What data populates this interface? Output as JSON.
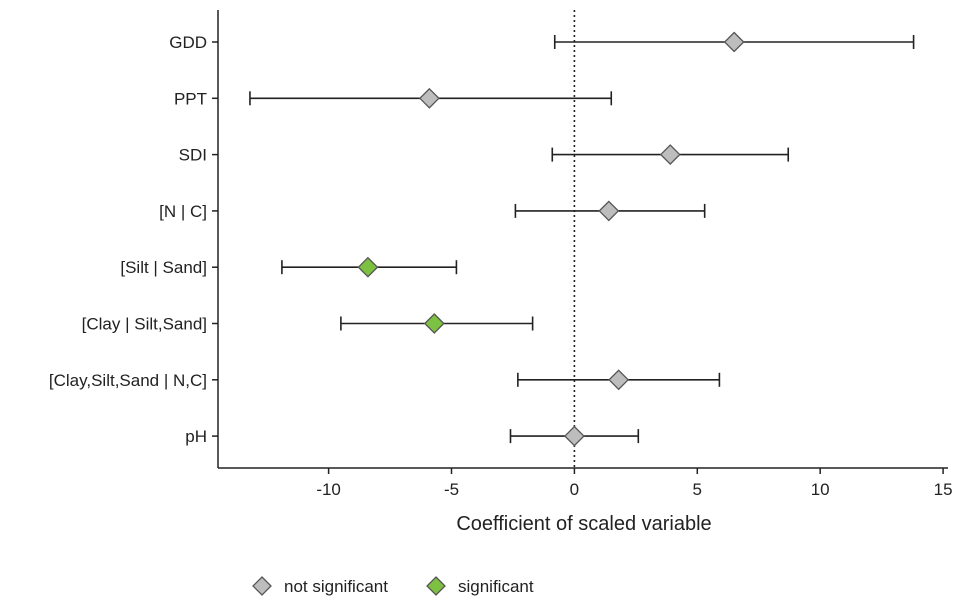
{
  "chart_data": {
    "type": "scatter",
    "subtype": "coefficient-plot-with-error-bars",
    "xlabel": "Coefficient of scaled variable",
    "ylabel": "",
    "xlim": [
      -14.5,
      15.2
    ],
    "xticks": [
      -10,
      -5,
      0,
      5,
      10,
      15
    ],
    "xtick_labels": [
      "-10",
      "-5",
      "0",
      "5",
      "10",
      "15"
    ],
    "reference_line": {
      "x": 0,
      "style": "dotted"
    },
    "grid": false,
    "categories": [
      "GDD",
      "PPT",
      "SDI",
      "[N | C]",
      "[Silt | Sand]",
      "[Clay | Silt,Sand]",
      "[Clay,Silt,Sand | N,C]",
      "pH"
    ],
    "points": [
      {
        "label": "GDD",
        "estimate": 6.5,
        "lower": -0.8,
        "upper": 13.8,
        "group": "not significant"
      },
      {
        "label": "PPT",
        "estimate": -5.9,
        "lower": -13.2,
        "upper": 1.5,
        "group": "not significant"
      },
      {
        "label": "SDI",
        "estimate": 3.9,
        "lower": -0.9,
        "upper": 8.7,
        "group": "not significant"
      },
      {
        "label": "[N | C]",
        "estimate": 1.4,
        "lower": -2.4,
        "upper": 5.3,
        "group": "not significant"
      },
      {
        "label": "[Silt | Sand]",
        "estimate": -8.4,
        "lower": -11.9,
        "upper": -4.8,
        "group": "significant"
      },
      {
        "label": "[Clay | Silt,Sand]",
        "estimate": -5.7,
        "lower": -9.5,
        "upper": -1.7,
        "group": "significant"
      },
      {
        "label": "[Clay,Silt,Sand | N,C]",
        "estimate": 1.8,
        "lower": -2.3,
        "upper": 5.9,
        "group": "not significant"
      },
      {
        "label": "pH",
        "estimate": 0.0,
        "lower": -2.6,
        "upper": 2.6,
        "group": "not significant"
      }
    ],
    "legend": {
      "position": "bottom-center",
      "items": [
        {
          "name": "not significant",
          "color": "#bdbdbd"
        },
        {
          "name": "significant",
          "color": "#7dc142"
        }
      ]
    },
    "colors": {
      "not_significant": "#bdbdbd",
      "significant": "#7dc142",
      "marker_edge": "#555555",
      "errorbar": "#222222",
      "axis": "#222222"
    }
  }
}
